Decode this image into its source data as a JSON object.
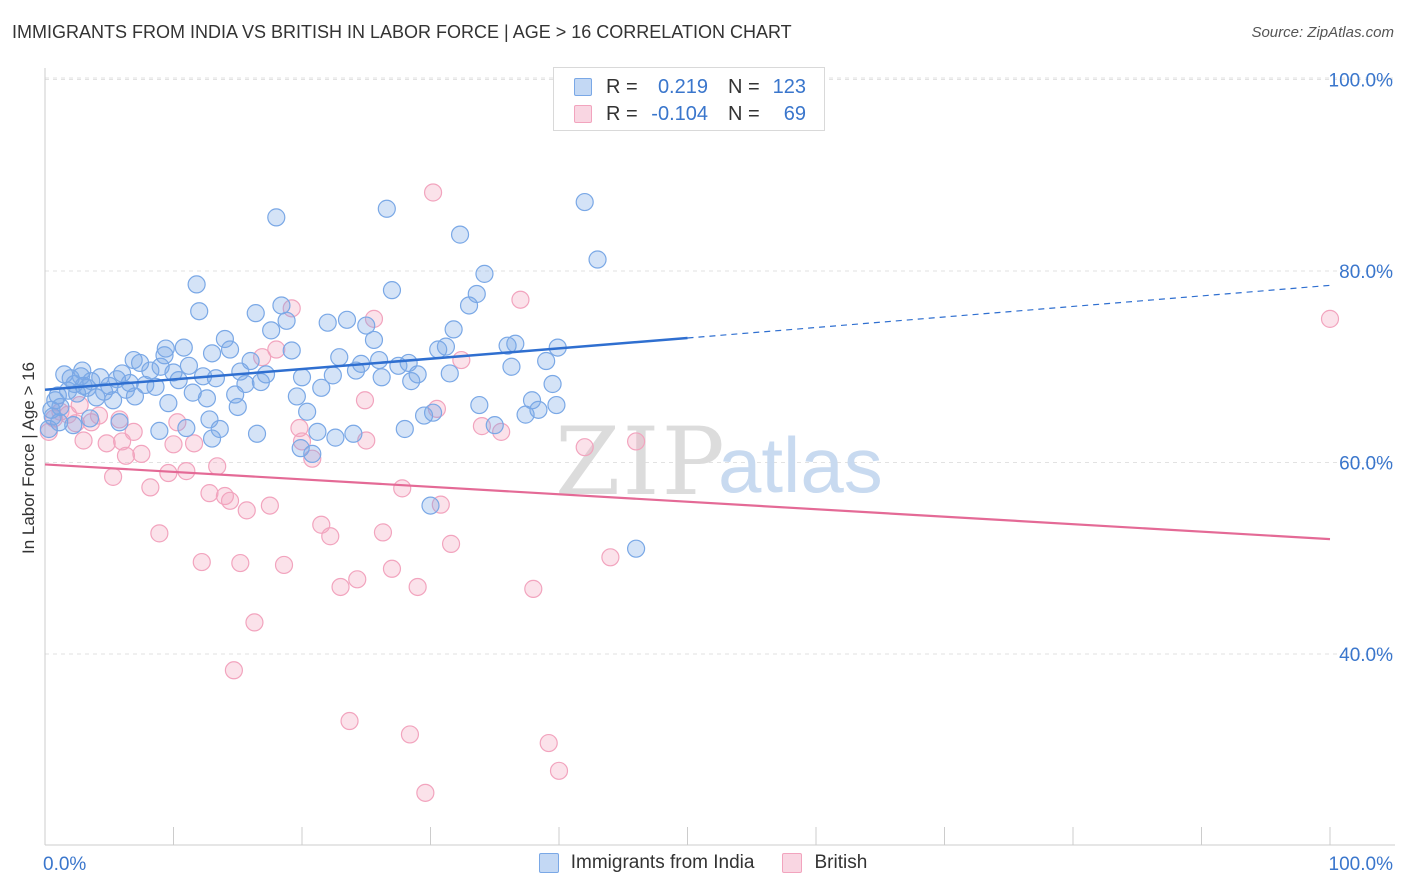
{
  "header": {
    "title": "IMMIGRANTS FROM INDIA VS BRITISH IN LABOR FORCE | AGE > 16 CORRELATION CHART",
    "source": "Source: ZipAtlas.com"
  },
  "watermark": {
    "zip": "ZIP",
    "atlas": "atlas"
  },
  "legend": {
    "r_label": "R =",
    "n_label": "N =",
    "rows": [
      {
        "r": "0.219",
        "n": "123",
        "color": "#7aa8e6"
      },
      {
        "r": "-0.104",
        "n": "69",
        "color": "#f2a4be"
      }
    ]
  },
  "chart_data": {
    "type": "scatter",
    "title": "IMMIGRANTS FROM INDIA VS BRITISH IN LABOR FORCE | AGE > 16 CORRELATION CHART",
    "xlabel": "",
    "ylabel": "In Labor Force | Age > 16",
    "xlim": [
      0,
      100
    ],
    "ylim": [
      20,
      102
    ],
    "x_tick_labels": [
      "0.0%",
      "100.0%"
    ],
    "y_ticks": [
      40,
      60,
      80,
      100
    ],
    "y_tick_labels": [
      "40.0%",
      "60.0%",
      "80.0%",
      "100.0%"
    ],
    "grid": true,
    "legend_position": "top-center",
    "series": [
      {
        "name": "Immigrants from India",
        "color": "#7aa8e6",
        "line_color": "#2f6fd0",
        "trend": {
          "x": [
            0,
            50
          ],
          "y": [
            67.6,
            73.0
          ],
          "dashed_to": [
            100,
            78.5
          ]
        },
        "points": [
          [
            0.5,
            65.5
          ],
          [
            0.8,
            66.5
          ],
          [
            1.0,
            67.0
          ],
          [
            1.2,
            65.8
          ],
          [
            1.5,
            69.2
          ],
          [
            1.8,
            67.5
          ],
          [
            2.0,
            68.8
          ],
          [
            2.3,
            68.2
          ],
          [
            2.5,
            67.2
          ],
          [
            2.8,
            69.0
          ],
          [
            3.0,
            68.0
          ],
          [
            3.3,
            67.8
          ],
          [
            3.6,
            68.5
          ],
          [
            4.0,
            66.8
          ],
          [
            4.3,
            68.9
          ],
          [
            4.6,
            67.4
          ],
          [
            5.0,
            68.0
          ],
          [
            5.3,
            66.5
          ],
          [
            5.6,
            68.7
          ],
          [
            6.0,
            69.3
          ],
          [
            6.3,
            67.6
          ],
          [
            6.6,
            68.3
          ],
          [
            7.0,
            66.9
          ],
          [
            7.4,
            70.4
          ],
          [
            7.8,
            68.1
          ],
          [
            8.2,
            69.6
          ],
          [
            8.6,
            67.9
          ],
          [
            9.0,
            70.0
          ],
          [
            9.3,
            71.2
          ],
          [
            9.6,
            66.2
          ],
          [
            10.0,
            69.4
          ],
          [
            10.4,
            68.6
          ],
          [
            10.8,
            72.0
          ],
          [
            11.2,
            70.1
          ],
          [
            11.5,
            67.3
          ],
          [
            11.8,
            78.6
          ],
          [
            12.0,
            75.8
          ],
          [
            12.3,
            69.0
          ],
          [
            12.6,
            66.7
          ],
          [
            13.0,
            71.4
          ],
          [
            13.3,
            68.8
          ],
          [
            13.6,
            63.5
          ],
          [
            14.0,
            72.9
          ],
          [
            14.4,
            71.8
          ],
          [
            14.8,
            67.1
          ],
          [
            15.2,
            69.5
          ],
          [
            15.6,
            68.2
          ],
          [
            16.0,
            70.6
          ],
          [
            16.4,
            75.6
          ],
          [
            16.8,
            68.4
          ],
          [
            17.2,
            69.2
          ],
          [
            17.6,
            73.8
          ],
          [
            18.0,
            85.6
          ],
          [
            18.4,
            76.4
          ],
          [
            18.8,
            74.8
          ],
          [
            19.2,
            71.7
          ],
          [
            19.6,
            66.9
          ],
          [
            20.0,
            68.9
          ],
          [
            20.4,
            65.3
          ],
          [
            20.8,
            60.9
          ],
          [
            21.2,
            63.2
          ],
          [
            22.0,
            74.6
          ],
          [
            22.4,
            69.1
          ],
          [
            22.9,
            71.0
          ],
          [
            23.5,
            74.9
          ],
          [
            24.0,
            63.0
          ],
          [
            24.6,
            70.3
          ],
          [
            25.0,
            74.3
          ],
          [
            25.6,
            72.8
          ],
          [
            26.0,
            70.7
          ],
          [
            26.6,
            86.5
          ],
          [
            27.0,
            78.0
          ],
          [
            27.5,
            70.1
          ],
          [
            28.0,
            63.5
          ],
          [
            28.5,
            68.5
          ],
          [
            29.0,
            69.2
          ],
          [
            29.5,
            64.9
          ],
          [
            30.0,
            55.5
          ],
          [
            30.6,
            71.8
          ],
          [
            31.2,
            72.1
          ],
          [
            31.8,
            73.9
          ],
          [
            32.3,
            83.8
          ],
          [
            33.0,
            76.4
          ],
          [
            33.6,
            77.6
          ],
          [
            34.2,
            79.7
          ],
          [
            35.0,
            63.9
          ],
          [
            36.0,
            72.2
          ],
          [
            36.6,
            72.4
          ],
          [
            37.4,
            65.0
          ],
          [
            37.9,
            66.5
          ],
          [
            38.4,
            65.5
          ],
          [
            39.0,
            70.6
          ],
          [
            39.5,
            68.2
          ],
          [
            39.8,
            66.0
          ],
          [
            39.9,
            72.0
          ],
          [
            42.0,
            87.2
          ],
          [
            43.0,
            81.2
          ],
          [
            46.0,
            51.0
          ],
          [
            0.3,
            63.5
          ],
          [
            0.6,
            64.8
          ],
          [
            1.1,
            64.2
          ],
          [
            2.2,
            63.9
          ],
          [
            3.5,
            64.6
          ],
          [
            5.8,
            64.2
          ],
          [
            8.9,
            63.3
          ],
          [
            11.0,
            63.6
          ],
          [
            13.0,
            62.5
          ],
          [
            16.5,
            63.0
          ],
          [
            19.9,
            61.5
          ],
          [
            21.5,
            67.8
          ],
          [
            22.6,
            62.6
          ],
          [
            24.2,
            69.6
          ],
          [
            26.2,
            68.9
          ],
          [
            28.3,
            70.4
          ],
          [
            30.2,
            65.2
          ],
          [
            31.5,
            69.3
          ],
          [
            33.8,
            66.0
          ],
          [
            36.3,
            70.0
          ],
          [
            2.9,
            69.6
          ],
          [
            6.9,
            70.7
          ],
          [
            9.4,
            71.9
          ],
          [
            12.8,
            64.5
          ],
          [
            15.0,
            65.8
          ]
        ]
      },
      {
        "name": "British",
        "color": "#f2a4be",
        "line_color": "#e46a96",
        "trend": {
          "x": [
            0,
            100
          ],
          "y": [
            59.8,
            52.0
          ]
        },
        "points": [
          [
            0.3,
            63.2
          ],
          [
            0.7,
            64.6
          ],
          [
            1.2,
            65.3
          ],
          [
            1.8,
            65.0
          ],
          [
            2.4,
            64.1
          ],
          [
            3.0,
            62.3
          ],
          [
            3.6,
            64.2
          ],
          [
            4.2,
            64.9
          ],
          [
            4.8,
            62.0
          ],
          [
            5.3,
            58.5
          ],
          [
            5.8,
            64.5
          ],
          [
            6.3,
            60.7
          ],
          [
            6.9,
            63.2
          ],
          [
            7.5,
            60.9
          ],
          [
            8.2,
            57.4
          ],
          [
            8.9,
            52.6
          ],
          [
            9.6,
            58.9
          ],
          [
            10.3,
            64.2
          ],
          [
            11.0,
            59.1
          ],
          [
            11.6,
            62.0
          ],
          [
            12.2,
            49.6
          ],
          [
            12.8,
            56.8
          ],
          [
            13.4,
            59.6
          ],
          [
            14.0,
            56.5
          ],
          [
            14.7,
            38.3
          ],
          [
            15.2,
            49.5
          ],
          [
            15.7,
            55.0
          ],
          [
            16.3,
            43.3
          ],
          [
            16.9,
            71.0
          ],
          [
            17.5,
            55.5
          ],
          [
            18.0,
            71.8
          ],
          [
            18.6,
            49.3
          ],
          [
            19.2,
            76.1
          ],
          [
            20.0,
            62.2
          ],
          [
            20.8,
            60.4
          ],
          [
            21.5,
            53.5
          ],
          [
            22.2,
            52.3
          ],
          [
            23.0,
            47.0
          ],
          [
            23.7,
            33.0
          ],
          [
            24.3,
            47.8
          ],
          [
            25.0,
            62.3
          ],
          [
            25.6,
            75.0
          ],
          [
            26.3,
            52.7
          ],
          [
            27.0,
            48.9
          ],
          [
            27.8,
            57.3
          ],
          [
            28.4,
            31.6
          ],
          [
            29.0,
            47.0
          ],
          [
            29.6,
            25.5
          ],
          [
            30.2,
            88.2
          ],
          [
            30.8,
            55.6
          ],
          [
            31.6,
            51.5
          ],
          [
            32.4,
            70.7
          ],
          [
            34.0,
            63.8
          ],
          [
            35.5,
            63.2
          ],
          [
            37.0,
            77.0
          ],
          [
            38.0,
            46.8
          ],
          [
            39.2,
            30.7
          ],
          [
            40.0,
            27.8
          ],
          [
            42.0,
            61.6
          ],
          [
            44.0,
            50.1
          ],
          [
            46.0,
            62.2
          ],
          [
            100,
            75.0
          ],
          [
            2.7,
            66.0
          ],
          [
            6.0,
            62.2
          ],
          [
            10.0,
            61.9
          ],
          [
            14.4,
            56.0
          ],
          [
            19.8,
            63.6
          ],
          [
            24.9,
            66.5
          ],
          [
            30.5,
            65.6
          ]
        ]
      }
    ]
  },
  "bottom_legend": [
    {
      "label": "Immigrants from India",
      "color": "#7aa8e6"
    },
    {
      "label": "British",
      "color": "#f2a4be"
    }
  ]
}
